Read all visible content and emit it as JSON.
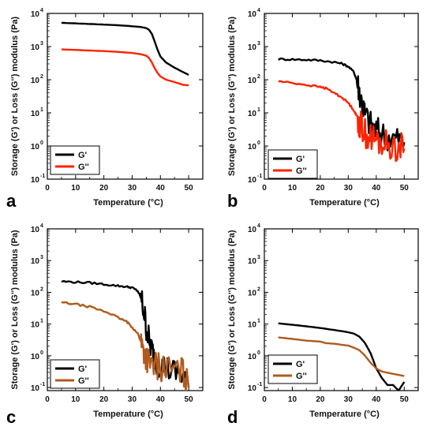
{
  "chart_data": [
    {
      "panel": "a",
      "type": "line",
      "xlabel": "Temperature (°C)",
      "ylabel": "Storage (G') or Loss (G'') modulus (Pa)",
      "xlim": [
        0,
        55
      ],
      "ylim": [
        0.1,
        10000
      ],
      "yscale": "log",
      "xticks": [
        0,
        10,
        20,
        30,
        40,
        50
      ],
      "yticks": [
        0.1,
        1,
        10,
        100,
        1000,
        10000
      ],
      "legend_position": "lower-left",
      "series": [
        {
          "name": "G'",
          "color": "#000000",
          "noisy": false,
          "x": [
            5,
            10,
            15,
            20,
            25,
            30,
            33,
            35,
            36,
            37,
            38,
            39,
            40,
            42,
            45,
            48,
            50
          ],
          "y": [
            5200,
            5000,
            4800,
            4600,
            4400,
            4100,
            3900,
            3600,
            3200,
            2400,
            1400,
            800,
            500,
            330,
            230,
            170,
            140
          ]
        },
        {
          "name": "G''",
          "color": "#ff2200",
          "noisy": false,
          "x": [
            5,
            10,
            15,
            20,
            25,
            30,
            33,
            35,
            36,
            37,
            38,
            39,
            40,
            42,
            45,
            48,
            50
          ],
          "y": [
            820,
            790,
            760,
            730,
            690,
            640,
            590,
            530,
            450,
            330,
            220,
            160,
            125,
            100,
            85,
            70,
            68
          ]
        }
      ]
    },
    {
      "panel": "b",
      "type": "line",
      "xlabel": "Temperature (°C)",
      "ylabel": "Storage (G') or Loss (G'') modulus (Pa)",
      "xlim": [
        0,
        55
      ],
      "ylim": [
        0.1,
        10000
      ],
      "yscale": "log",
      "xticks": [
        0,
        10,
        20,
        30,
        40,
        50
      ],
      "yticks": [
        0.1,
        1,
        10,
        100,
        1000,
        10000
      ],
      "legend_position": "lower-left",
      "series": [
        {
          "name": "G'",
          "color": "#000000",
          "noisy": true,
          "x": [
            5,
            10,
            15,
            20,
            25,
            28,
            30,
            32,
            33,
            34,
            35,
            36,
            38,
            40,
            42,
            45,
            48,
            50
          ],
          "y": [
            420,
            410,
            400,
            380,
            340,
            300,
            250,
            170,
            100,
            45,
            18,
            9,
            4.5,
            3,
            2.3,
            1.9,
            1.6,
            1.3
          ]
        },
        {
          "name": "G''",
          "color": "#ff2200",
          "noisy": true,
          "x": [
            5,
            10,
            15,
            20,
            22,
            25,
            28,
            30,
            32,
            33,
            34,
            35,
            36,
            38,
            40,
            42,
            45,
            48,
            50
          ],
          "y": [
            90,
            80,
            70,
            60,
            55,
            40,
            28,
            20,
            12,
            8,
            5,
            3.5,
            2.5,
            1.8,
            1.4,
            1.2,
            1.0,
            0.9,
            0.85
          ]
        }
      ]
    },
    {
      "panel": "c",
      "type": "line",
      "xlabel": "Temperature (°C)",
      "ylabel": "Storage (G') or Loss (G'') modulus (Pa)",
      "xlim": [
        0,
        55
      ],
      "ylim": [
        0.08,
        10000
      ],
      "yscale": "log",
      "xticks": [
        0,
        10,
        20,
        30,
        40,
        50
      ],
      "yticks": [
        0.1,
        1,
        10,
        100,
        1000,
        10000
      ],
      "legend_position": "lower-left",
      "series": [
        {
          "name": "G'",
          "color": "#000000",
          "noisy": true,
          "x": [
            5,
            10,
            15,
            20,
            25,
            28,
            30,
            32,
            33,
            34,
            35,
            36,
            37,
            38,
            40,
            42,
            45,
            48,
            50
          ],
          "y": [
            220,
            210,
            200,
            180,
            160,
            150,
            140,
            110,
            70,
            30,
            8,
            3,
            1.5,
            0.8,
            0.5,
            0.4,
            0.3,
            0.25,
            0.1
          ]
        },
        {
          "name": "G''",
          "color": "#b05a1e",
          "noisy": true,
          "x": [
            5,
            10,
            15,
            20,
            22,
            25,
            28,
            30,
            32,
            33,
            34,
            35,
            36,
            38,
            40,
            42,
            45,
            48,
            50
          ],
          "y": [
            48,
            42,
            35,
            25,
            22,
            16,
            12,
            8,
            5,
            3,
            1.5,
            0.9,
            0.6,
            0.5,
            0.45,
            0.4,
            0.35,
            0.3,
            0.1
          ]
        }
      ]
    },
    {
      "panel": "d",
      "type": "line",
      "xlabel": "Temperature (°C)",
      "ylabel": "Storage (G') or Loss (G'') modulus (Pa)",
      "xlim": [
        0,
        55
      ],
      "ylim": [
        0.08,
        10000
      ],
      "yscale": "log",
      "xticks": [
        0,
        10,
        20,
        30,
        40,
        50
      ],
      "yticks": [
        0.1,
        1,
        10,
        100,
        1000,
        10000
      ],
      "legend_position": "lower-left",
      "series": [
        {
          "name": "G'",
          "color": "#000000",
          "noisy": false,
          "x": [
            5,
            10,
            15,
            20,
            25,
            30,
            32,
            34,
            36,
            38,
            40,
            42,
            44,
            46,
            48,
            50
          ],
          "y": [
            10.5,
            9.5,
            8.5,
            7.5,
            6.5,
            5.5,
            5.0,
            4.0,
            2.5,
            1.2,
            0.4,
            0.2,
            0.12,
            0.12,
            0.08,
            0.15
          ]
        },
        {
          "name": "G''",
          "color": "#b05a1e",
          "noisy": false,
          "x": [
            5,
            10,
            15,
            20,
            22,
            25,
            28,
            30,
            32,
            34,
            36,
            38,
            40,
            42,
            45,
            48,
            50
          ],
          "y": [
            3.8,
            3.4,
            3.0,
            2.8,
            2.5,
            2.4,
            2.2,
            2.1,
            1.8,
            1.5,
            1.0,
            0.6,
            0.4,
            0.32,
            0.28,
            0.25,
            0.23
          ]
        }
      ]
    }
  ]
}
